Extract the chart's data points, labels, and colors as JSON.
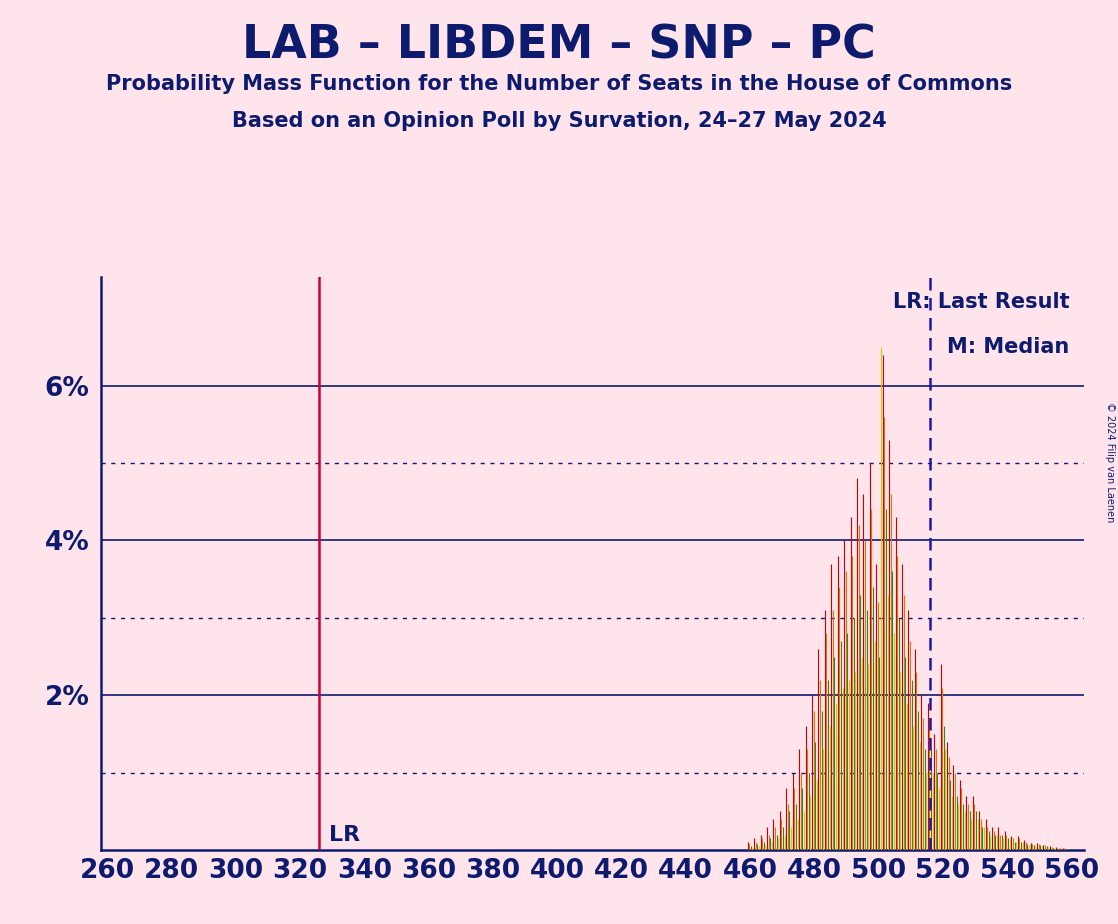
{
  "title": "LAB – LIBDEM – SNP – PC",
  "subtitle1": "Probability Mass Function for the Number of Seats in the House of Commons",
  "subtitle2": "Based on an Opinion Poll by Survation, 24–27 May 2024",
  "copyright": "© 2024 Filip van Laenen",
  "background_color": "#FFE4EC",
  "title_color": "#0D1B6E",
  "axis_color": "#0D1B6E",
  "lr_value": 326,
  "median_value": 516,
  "lr_color": "#CC0033",
  "median_color": "#1a1aaa",
  "bar_colors": [
    "#CC0000",
    "#DD7700",
    "#228B22",
    "#CCCC00"
  ],
  "xlim": [
    258,
    564
  ],
  "ylim": [
    0,
    0.074
  ],
  "yticks": [
    0.0,
    0.02,
    0.04,
    0.06
  ],
  "ytick_labels": [
    "",
    "2%",
    "4%",
    "6%"
  ],
  "dotted_yticks": [
    0.01,
    0.03,
    0.05
  ],
  "xticks": [
    260,
    280,
    300,
    320,
    340,
    360,
    380,
    400,
    420,
    440,
    460,
    480,
    500,
    520,
    540,
    560
  ],
  "pmf_seats": [
    460,
    462,
    464,
    466,
    468,
    470,
    472,
    474,
    476,
    478,
    480,
    482,
    484,
    486,
    488,
    490,
    492,
    494,
    496,
    498,
    500,
    502,
    504,
    506,
    508,
    510,
    512,
    514,
    516,
    518,
    520,
    522,
    524,
    526,
    528,
    530,
    532,
    534,
    536,
    538,
    540,
    542,
    544,
    546,
    548,
    550,
    552,
    554,
    556,
    558
  ],
  "pmf_red": [
    0.001,
    0.0015,
    0.002,
    0.003,
    0.004,
    0.005,
    0.008,
    0.01,
    0.013,
    0.016,
    0.02,
    0.026,
    0.031,
    0.037,
    0.038,
    0.04,
    0.043,
    0.048,
    0.046,
    0.05,
    0.037,
    0.064,
    0.053,
    0.043,
    0.037,
    0.031,
    0.026,
    0.02,
    0.019,
    0.015,
    0.024,
    0.014,
    0.011,
    0.009,
    0.007,
    0.007,
    0.005,
    0.004,
    0.003,
    0.003,
    0.0025,
    0.0018,
    0.0018,
    0.0013,
    0.0009,
    0.0009,
    0.0007,
    0.0005,
    0.0004,
    0.0003
  ],
  "pmf_orange": [
    0.0008,
    0.001,
    0.0015,
    0.002,
    0.003,
    0.004,
    0.006,
    0.008,
    0.01,
    0.013,
    0.018,
    0.022,
    0.028,
    0.031,
    0.034,
    0.036,
    0.038,
    0.042,
    0.04,
    0.044,
    0.032,
    0.056,
    0.046,
    0.038,
    0.033,
    0.027,
    0.023,
    0.017,
    0.017,
    0.013,
    0.021,
    0.012,
    0.01,
    0.008,
    0.006,
    0.006,
    0.004,
    0.003,
    0.0025,
    0.002,
    0.002,
    0.0015,
    0.0015,
    0.001,
    0.0008,
    0.0008,
    0.0006,
    0.0004,
    0.0003,
    0.0003
  ],
  "pmf_green": [
    0.0005,
    0.0008,
    0.001,
    0.0015,
    0.002,
    0.003,
    0.005,
    0.006,
    0.008,
    0.01,
    0.014,
    0.018,
    0.022,
    0.025,
    0.027,
    0.028,
    0.03,
    0.033,
    0.031,
    0.034,
    0.025,
    0.044,
    0.036,
    0.03,
    0.025,
    0.022,
    0.018,
    0.013,
    0.013,
    0.01,
    0.016,
    0.009,
    0.007,
    0.006,
    0.005,
    0.005,
    0.003,
    0.0025,
    0.002,
    0.002,
    0.0015,
    0.001,
    0.001,
    0.0008,
    0.0006,
    0.0006,
    0.0005,
    0.0003,
    0.0003,
    0.0002
  ],
  "pmf_yellow": [
    0.0003,
    0.0005,
    0.0007,
    0.001,
    0.0015,
    0.002,
    0.003,
    0.004,
    0.005,
    0.007,
    0.009,
    0.013,
    0.016,
    0.019,
    0.021,
    0.022,
    0.023,
    0.025,
    0.024,
    0.027,
    0.065,
    0.033,
    0.028,
    0.023,
    0.019,
    0.016,
    0.014,
    0.01,
    0.01,
    0.008,
    0.013,
    0.007,
    0.006,
    0.005,
    0.004,
    0.004,
    0.003,
    0.002,
    0.002,
    0.0015,
    0.0015,
    0.001,
    0.001,
    0.0006,
    0.0005,
    0.0005,
    0.0004,
    0.0003,
    0.0002,
    0.0002
  ]
}
